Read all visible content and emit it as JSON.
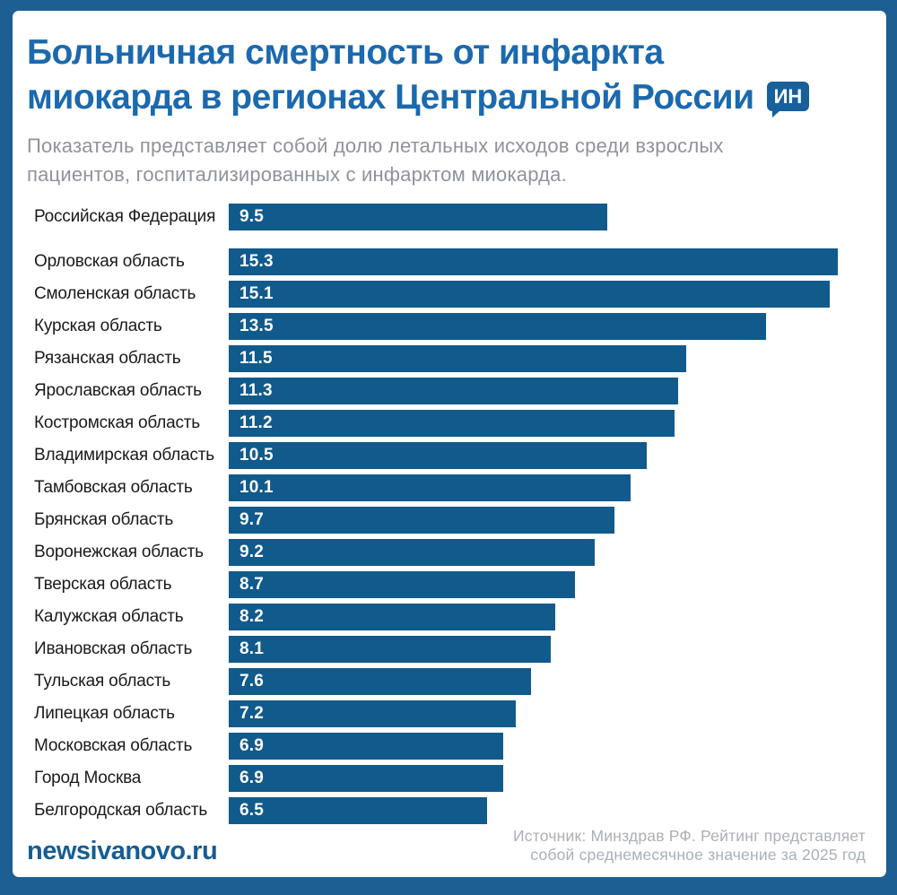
{
  "header": {
    "title_line1": "Больничная смертность от инфаркта",
    "title_line2": "миокарда в регионах Центральной России",
    "badge_label": "ИН",
    "subtitle_line1": "Показатель представляет собой долю летальных исходов среди взрослых",
    "subtitle_line2": "пациентов, госпитализированных с инфарктом миокарда."
  },
  "chart_data": {
    "type": "bar",
    "orientation": "horizontal",
    "title": "Больничная смертность от инфаркта миокарда в регионах Центральной России",
    "unit": "percent_share_of_lethal_outcomes",
    "scale_max": 15.3,
    "bar_color": "#115a8c",
    "value_label_position": "inside-left",
    "categories": [
      "Российская Федерация",
      "Орловская область",
      "Смоленская область",
      "Курская область",
      "Рязанская область",
      "Ярославская область",
      "Костромская область",
      "Владимирская область",
      "Тамбовская область",
      "Брянская область",
      "Воронежская область",
      "Тверская область",
      "Калужская область",
      "Ивановская область",
      "Тульская область",
      "Липецкая область",
      "Московская область",
      "Город Москва",
      "Белгородская область"
    ],
    "values": [
      9.5,
      15.3,
      15.1,
      13.5,
      11.5,
      11.3,
      11.2,
      10.5,
      10.1,
      9.7,
      9.2,
      8.7,
      8.2,
      8.1,
      7.6,
      7.2,
      6.9,
      6.9,
      6.5
    ]
  },
  "footer": {
    "site": "newsivanovo.ru",
    "source_line1": "Источник: Минздрав РФ. Рейтинг представляет",
    "source_line2": "собой среднемесячное значение за 2025 год"
  },
  "colors": {
    "frame": "#1d5e93",
    "background": "#ffffff",
    "title": "#1b69ae",
    "badge": "#17609b",
    "subtitle": "#8d939c",
    "region_label": "#1a1a1a",
    "bar": "#115a8c",
    "bar_value_text": "#ffffff",
    "site_logo": "#175d92",
    "source_text": "#a9b0b7"
  }
}
